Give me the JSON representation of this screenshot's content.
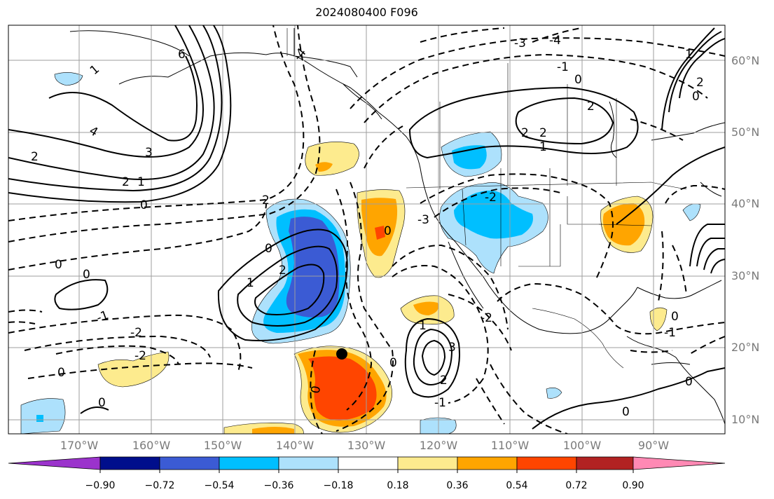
{
  "title": "2024080400 F096",
  "map": {
    "lat_labels": [
      "60°N",
      "50°N",
      "40°N",
      "30°N",
      "20°N",
      "10°N"
    ],
    "lon_labels": [
      "170°W",
      "160°W",
      "150°W",
      "140°W",
      "130°W",
      "120°W",
      "110°W",
      "100°W",
      "90°W"
    ],
    "contour_labels": [
      "0",
      "-1",
      "-2",
      "-3",
      "-4",
      "1",
      "2",
      "3",
      "4",
      "6"
    ],
    "marker": {
      "lat": 19,
      "lon": -134
    }
  },
  "colorbar": {
    "ticks": [
      "−0.90",
      "−0.72",
      "−0.54",
      "−0.36",
      "−0.18",
      "0.18",
      "0.36",
      "0.54",
      "0.72",
      "0.90"
    ],
    "colors": [
      "#9b33cc",
      "#000e8c",
      "#3b5bd4",
      "#00bfff",
      "#ade1fc",
      "#ffffff",
      "#fdeb8e",
      "#ffa500",
      "#ff4500",
      "#b22222",
      "#ff89b4"
    ]
  }
}
